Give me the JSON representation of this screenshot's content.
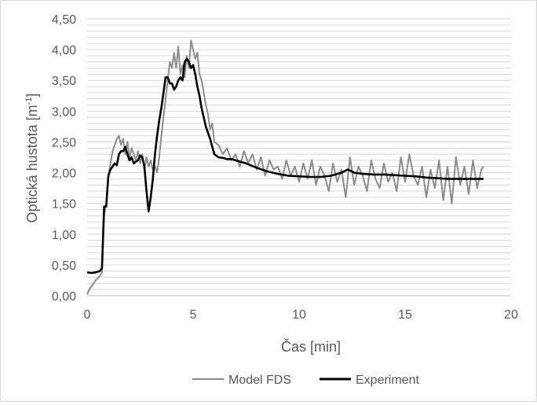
{
  "chart_data": {
    "type": "line",
    "xlabel": "Čas [min]",
    "ylabel_main": "Optická hustota [m",
    "ylabel_sup": "-1",
    "ylabel_tail": "]",
    "xlim": [
      0,
      20
    ],
    "ylim": [
      0,
      4.5
    ],
    "x_ticks": [
      0,
      5,
      10,
      15,
      20
    ],
    "x_tick_labels": [
      "0",
      "5",
      "10",
      "15",
      "20"
    ],
    "y_ticks": [
      0,
      0.5,
      1,
      1.5,
      2,
      2.5,
      3,
      3.5,
      4,
      4.5
    ],
    "y_tick_labels": [
      "0,00",
      "0,50",
      "1,00",
      "1,50",
      "2,00",
      "2,50",
      "3,00",
      "3,50",
      "4,00",
      "4,50"
    ],
    "grid": true,
    "legend": {
      "position": "bottom"
    },
    "colors": {
      "model": "#8c8c8c",
      "experiment": "#000000",
      "grid": "#d9d9d9",
      "text": "#595959"
    },
    "series": [
      {
        "name": "Model FDS",
        "x": [
          0.0,
          0.1,
          0.2,
          0.3,
          0.4,
          0.5,
          0.6,
          0.7,
          0.8,
          0.9,
          1.0,
          1.1,
          1.2,
          1.3,
          1.4,
          1.5,
          1.6,
          1.7,
          1.8,
          1.9,
          2.0,
          2.1,
          2.2,
          2.3,
          2.4,
          2.5,
          2.6,
          2.7,
          2.8,
          2.9,
          3.0,
          3.1,
          3.2,
          3.3,
          3.4,
          3.5,
          3.6,
          3.7,
          3.8,
          3.9,
          4.0,
          4.1,
          4.2,
          4.3,
          4.4,
          4.5,
          4.6,
          4.7,
          4.8,
          4.9,
          5.0,
          5.1,
          5.2,
          5.3,
          5.4,
          5.5,
          5.6,
          5.7,
          5.8,
          5.9,
          6.0,
          6.2,
          6.4,
          6.6,
          6.8,
          7.0,
          7.2,
          7.4,
          7.6,
          7.8,
          8.0,
          8.2,
          8.4,
          8.6,
          8.8,
          9.0,
          9.2,
          9.4,
          9.6,
          9.8,
          10.0,
          10.2,
          10.4,
          10.6,
          10.8,
          11.0,
          11.2,
          11.4,
          11.6,
          11.8,
          12.0,
          12.2,
          12.4,
          12.6,
          12.8,
          13.0,
          13.2,
          13.4,
          13.6,
          13.8,
          14.0,
          14.2,
          14.4,
          14.6,
          14.8,
          15.0,
          15.2,
          15.4,
          15.6,
          15.8,
          16.0,
          16.2,
          16.4,
          16.6,
          16.8,
          17.0,
          17.2,
          17.4,
          17.6,
          17.8,
          18.0,
          18.2,
          18.4,
          18.6,
          18.7
        ],
        "y": [
          0.02,
          0.1,
          0.15,
          0.2,
          0.25,
          0.28,
          0.32,
          0.38,
          1.3,
          1.5,
          1.95,
          2.15,
          2.35,
          2.45,
          2.55,
          2.6,
          2.45,
          2.55,
          2.3,
          2.5,
          2.25,
          2.4,
          2.3,
          2.2,
          2.35,
          2.15,
          2.3,
          2.05,
          2.25,
          2.1,
          2.2,
          2.05,
          2.1,
          2.0,
          2.25,
          2.6,
          2.9,
          3.2,
          3.5,
          3.8,
          3.7,
          3.95,
          3.7,
          4.05,
          3.6,
          3.75,
          3.55,
          3.9,
          3.7,
          4.15,
          4.0,
          3.85,
          3.95,
          3.6,
          3.5,
          3.3,
          3.1,
          2.95,
          2.7,
          2.8,
          2.5,
          2.45,
          2.3,
          2.4,
          2.2,
          2.3,
          2.1,
          2.35,
          2.15,
          2.3,
          2.05,
          2.25,
          1.95,
          2.2,
          2.05,
          2.1,
          1.9,
          2.2,
          1.95,
          2.1,
          1.85,
          2.15,
          1.9,
          2.2,
          1.8,
          2.1,
          1.95,
          1.7,
          2.15,
          1.85,
          2.05,
          1.6,
          2.25,
          1.8,
          2.1,
          1.95,
          1.7,
          2.2,
          1.9,
          1.75,
          2.15,
          1.85,
          2.0,
          1.7,
          2.25,
          1.85,
          2.3,
          1.95,
          1.8,
          2.1,
          1.6,
          2.05,
          1.75,
          2.2,
          1.55,
          2.1,
          1.5,
          2.25,
          1.8,
          2.1,
          1.65,
          2.2,
          1.75,
          2.05,
          2.1
        ]
      },
      {
        "name": "Experiment",
        "x": [
          0.0,
          0.2,
          0.4,
          0.6,
          0.7,
          0.8,
          0.9,
          1.0,
          1.1,
          1.2,
          1.3,
          1.4,
          1.5,
          1.6,
          1.7,
          1.8,
          1.9,
          2.0,
          2.1,
          2.2,
          2.3,
          2.4,
          2.5,
          2.6,
          2.7,
          2.8,
          2.9,
          3.0,
          3.1,
          3.2,
          3.3,
          3.4,
          3.5,
          3.6,
          3.7,
          3.8,
          3.9,
          4.0,
          4.1,
          4.2,
          4.3,
          4.4,
          4.5,
          4.6,
          4.7,
          4.8,
          4.9,
          5.0,
          5.1,
          5.2,
          5.3,
          5.4,
          5.5,
          5.6,
          5.8,
          6.0,
          6.2,
          6.4,
          6.6,
          6.8,
          7.0,
          7.5,
          8.0,
          8.5,
          9.0,
          9.5,
          10.0,
          10.5,
          11.0,
          11.5,
          12.0,
          12.3,
          12.6,
          13.0,
          13.5,
          14.0,
          14.5,
          15.0,
          15.5,
          16.0,
          16.5,
          17.0,
          17.5,
          18.0,
          18.5,
          18.7
        ],
        "y": [
          0.38,
          0.37,
          0.38,
          0.4,
          0.45,
          1.45,
          1.45,
          1.95,
          2.05,
          2.1,
          2.15,
          2.12,
          2.3,
          2.35,
          2.35,
          2.42,
          2.3,
          2.2,
          2.25,
          2.15,
          2.18,
          2.2,
          2.28,
          2.25,
          2.1,
          1.7,
          1.37,
          1.6,
          1.9,
          2.3,
          2.6,
          2.85,
          3.05,
          3.3,
          3.55,
          3.55,
          3.45,
          3.45,
          3.35,
          3.4,
          3.5,
          3.55,
          3.5,
          3.8,
          3.85,
          3.8,
          3.7,
          3.75,
          3.6,
          3.4,
          3.25,
          3.05,
          2.9,
          2.75,
          2.55,
          2.3,
          2.25,
          2.24,
          2.22,
          2.22,
          2.2,
          2.15,
          2.08,
          2.02,
          1.98,
          1.95,
          1.94,
          1.93,
          1.93,
          1.95,
          2.0,
          2.05,
          2.0,
          1.98,
          1.97,
          1.97,
          1.96,
          1.95,
          1.94,
          1.92,
          1.91,
          1.9,
          1.9,
          1.9,
          1.9,
          1.9
        ]
      }
    ]
  }
}
